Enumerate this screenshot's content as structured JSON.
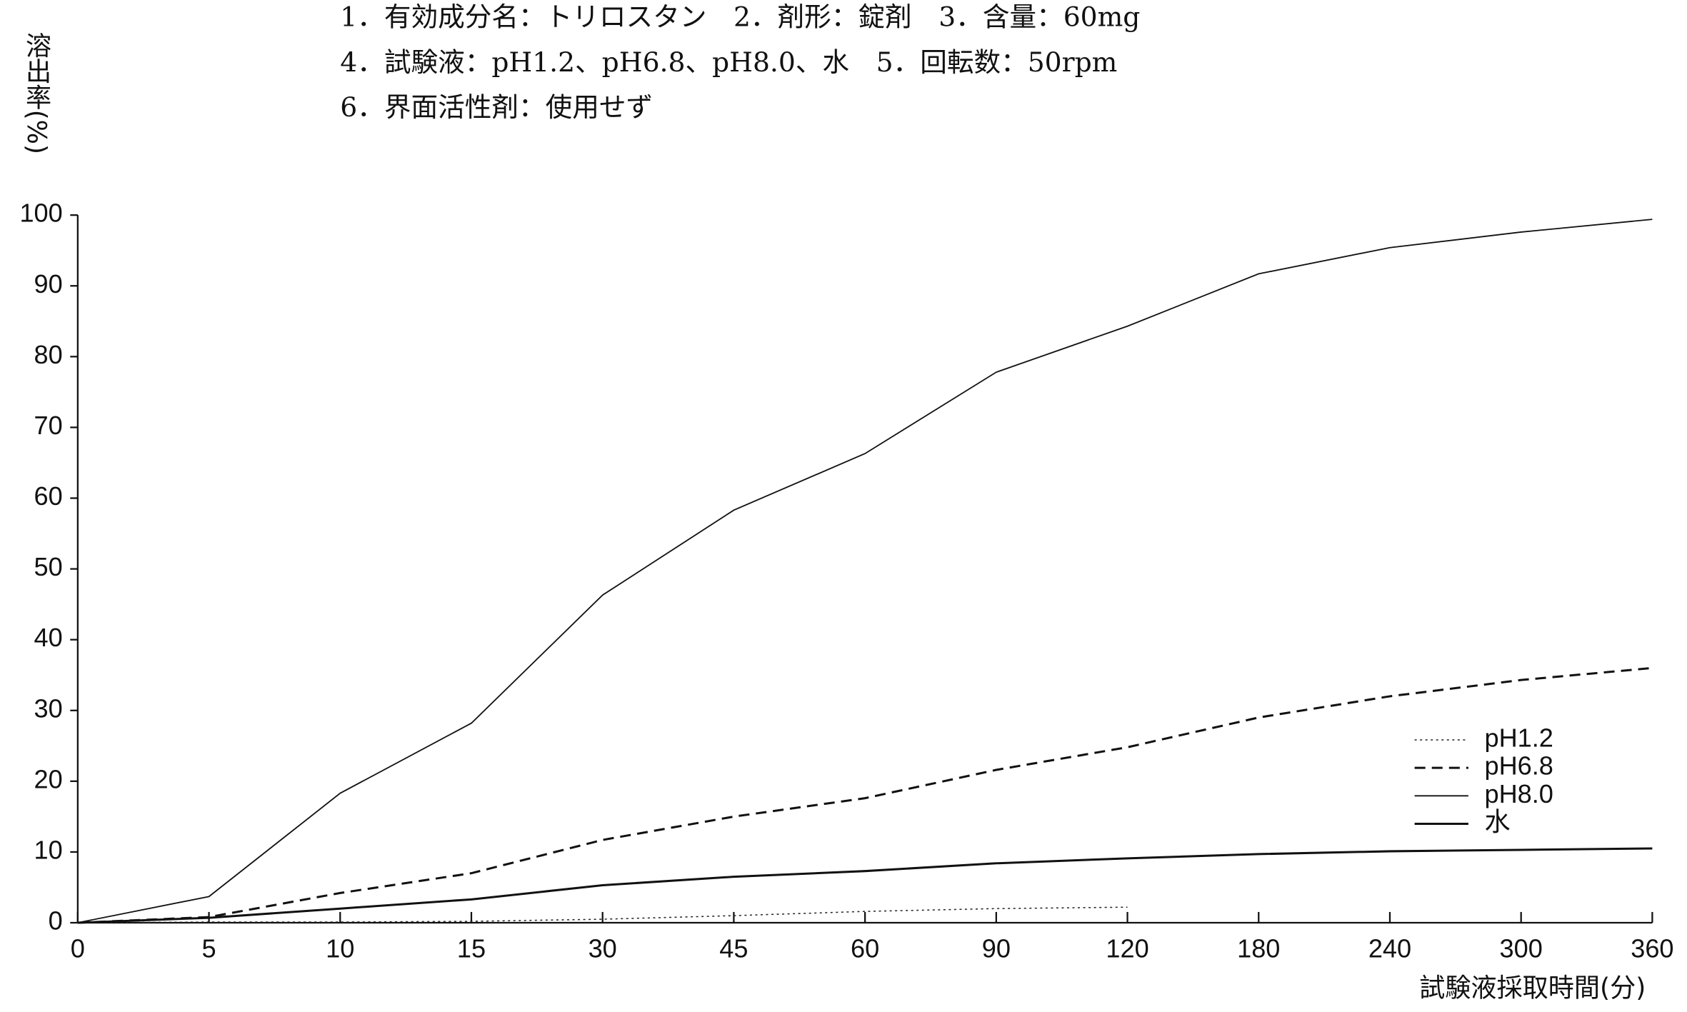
{
  "chart_data": {
    "type": "line",
    "header": [
      "1．有効成分名：トリロスタン　2．剤形：錠剤　3．含量：60mg",
      "4．試験液：pH1.2、pH6.8、pH8.0、水　5．回転数：50rpm",
      "6．界面活性剤：使用せず"
    ],
    "y_label": "溶出率(%)",
    "x_label": "試験液採取時間(分)",
    "categories": [
      0,
      5,
      10,
      15,
      30,
      45,
      60,
      90,
      120,
      180,
      240,
      300,
      360
    ],
    "ylim": [
      0,
      100
    ],
    "yticks": [
      0,
      10,
      20,
      30,
      40,
      50,
      60,
      70,
      80,
      90,
      100
    ],
    "legend": "lower right",
    "series": [
      {
        "name": "pH1.2",
        "color": "#222222",
        "dash": "dotted",
        "width": 1,
        "values": [
          0,
          0.1,
          0.1,
          0.2,
          0.5,
          1.0,
          1.6,
          2.0,
          2.2,
          null,
          null,
          null,
          null
        ]
      },
      {
        "name": "pH6.8",
        "color": "#111111",
        "dash": "dashed",
        "width": 2,
        "values": [
          0,
          0.8,
          4.2,
          7,
          11.7,
          15,
          17.6,
          21.6,
          24.8,
          29,
          32,
          34.3,
          36
        ]
      },
      {
        "name": "pH8.0",
        "color": "#111111",
        "dash": "solid",
        "width": 1.2,
        "values": [
          0,
          3.7,
          18.3,
          28.2,
          46.3,
          58.3,
          66.3,
          77.8,
          84.3,
          91.7,
          95.4,
          97.6,
          99.4
        ]
      },
      {
        "name": "水",
        "color": "#111111",
        "dash": "solid",
        "width": 2,
        "values": [
          0,
          0.7,
          2,
          3.3,
          5.3,
          6.5,
          7.3,
          8.4,
          9.1,
          9.7,
          10.1,
          10.3,
          10.5
        ]
      }
    ]
  }
}
